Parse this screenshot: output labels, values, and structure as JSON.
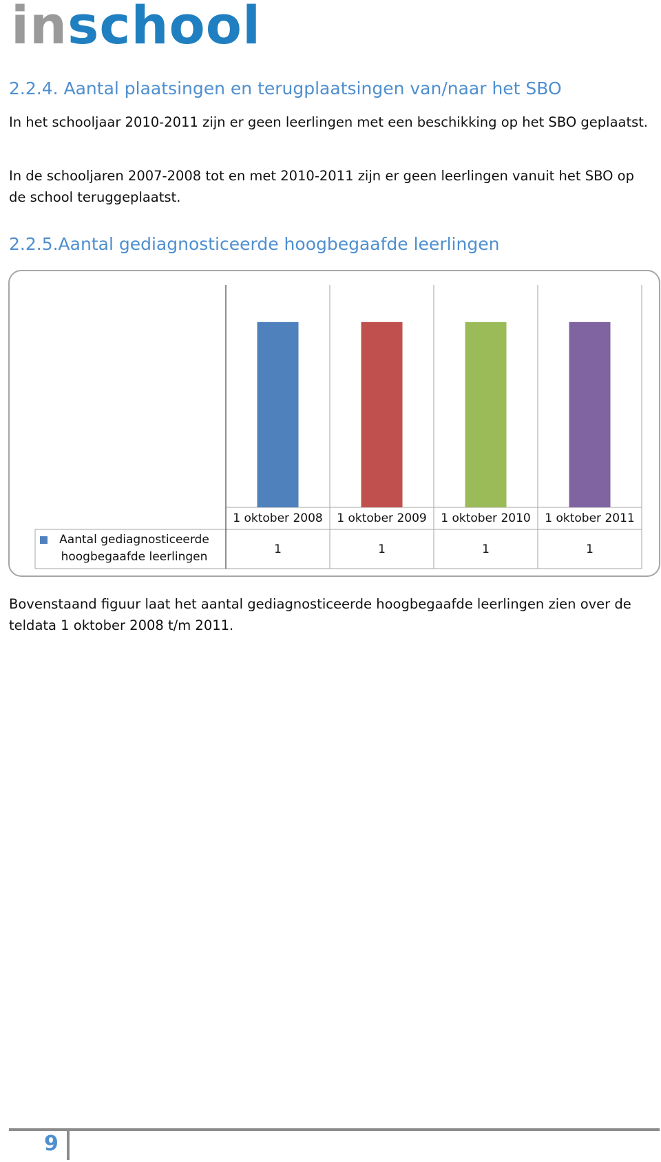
{
  "logo": {
    "part1": "in",
    "part2": "school"
  },
  "section_1": {
    "heading": "2.2.4. Aantal plaatsingen en terugplaatsingen van/naar het SBO",
    "paragraphs": [
      "In het schooljaar 2010-2011 zijn er geen leerlingen met een beschikking op het SBO geplaatst.",
      "In de schooljaren 2007-2008 tot en met 2010-2011 zijn er geen leerlingen vanuit het SBO op de school teruggeplaatst."
    ]
  },
  "section_2": {
    "heading": "2.2.5.Aantal gediagnosticeerde hoogbegaafde leerlingen",
    "caption": "Bovenstaand figuur laat het aantal gediagnosticeerde hoogbegaafde leerlingen zien over de teldata 1 oktober 2008 t/m 2011."
  },
  "chart_data": {
    "type": "bar",
    "categories": [
      "1 oktober 2008",
      "1 oktober 2009",
      "1 oktober 2010",
      "1 oktober 2011"
    ],
    "series": [
      {
        "name": "Aantal gediagnosticeerde hoogbegaafde leerlingen",
        "color": "#4f81bd",
        "values": [
          1,
          1,
          1,
          1
        ]
      }
    ],
    "bar_colors": [
      "#4f81bd",
      "#c0504d",
      "#9bbb59",
      "#8064a2"
    ],
    "ylim": [
      0,
      1.2
    ],
    "data_table": true
  },
  "footer": {
    "page_number": "9"
  }
}
